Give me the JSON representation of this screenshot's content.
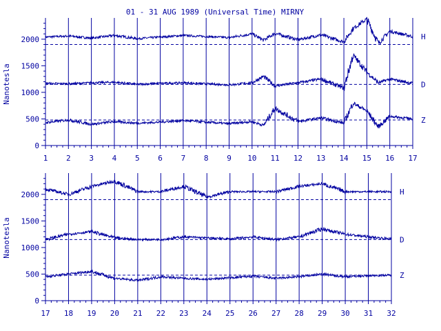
{
  "chart_data": {
    "type": "line",
    "title": "01 - 31 AUG 1989 (Universal Time) MIRNY",
    "ylabel": "Nanotesla",
    "color": "#0000a0",
    "ylim": [
      0,
      2400
    ],
    "yticks": [
      "0",
      "500",
      "1000",
      "1500",
      "2000"
    ],
    "components": [
      "H",
      "D",
      "Z"
    ],
    "baselines": {
      "H": 1900,
      "D": 1150,
      "Z": 480
    },
    "panels": [
      {
        "xlim": [
          1,
          17
        ],
        "xticks": [
          "1",
          "2",
          "3",
          "4",
          "5",
          "6",
          "7",
          "8",
          "9",
          "10",
          "11",
          "12",
          "13",
          "14",
          "15",
          "16",
          "17"
        ],
        "series": [
          {
            "name": "H",
            "x": [
              1,
              2,
              3,
              4,
              5,
              6,
              7,
              8,
              9,
              10,
              10.5,
              11,
              12,
              13,
              14,
              14.4,
              15,
              15.5,
              16,
              17
            ],
            "values": [
              2040,
              2060,
              2020,
              2070,
              2010,
              2040,
              2070,
              2050,
              2030,
              2100,
              1980,
              2110,
              1990,
              2080,
              1950,
              2200,
              2380,
              1920,
              2150,
              2050
            ]
          },
          {
            "name": "D",
            "x": [
              1,
              2,
              3,
              4,
              5,
              6,
              7,
              8,
              9,
              10,
              10.5,
              11,
              12,
              13,
              14,
              14.4,
              15,
              15.5,
              16,
              17
            ],
            "values": [
              1170,
              1160,
              1180,
              1190,
              1150,
              1170,
              1180,
              1160,
              1140,
              1180,
              1300,
              1120,
              1180,
              1250,
              1080,
              1700,
              1380,
              1180,
              1250,
              1170
            ]
          },
          {
            "name": "Z",
            "x": [
              1,
              2,
              3,
              4,
              5,
              6,
              7,
              8,
              9,
              10,
              10.5,
              11,
              12,
              13,
              14,
              14.4,
              15,
              15.5,
              16,
              17
            ],
            "values": [
              430,
              480,
              400,
              450,
              420,
              440,
              470,
              440,
              410,
              450,
              380,
              700,
              450,
              520,
              420,
              800,
              650,
              350,
              550,
              500
            ]
          }
        ]
      },
      {
        "xlim": [
          17,
          32
        ],
        "xticks": [
          "17",
          "18",
          "19",
          "20",
          "21",
          "22",
          "23",
          "24",
          "25",
          "26",
          "27",
          "28",
          "29",
          "30",
          "31",
          "32"
        ],
        "series": [
          {
            "name": "H",
            "x": [
              17,
              18,
              19,
              20,
              21,
              22,
              23,
              24,
              25,
              26,
              27,
              28,
              29,
              30,
              31,
              32
            ],
            "values": [
              2100,
              2000,
              2150,
              2250,
              2050,
              2050,
              2150,
              1950,
              2050,
              2050,
              2050,
              2150,
              2200,
              2050,
              2050,
              2050
            ]
          },
          {
            "name": "D",
            "x": [
              17,
              18,
              19,
              20,
              21,
              22,
              23,
              24,
              25,
              26,
              27,
              28,
              29,
              30,
              31,
              32
            ],
            "values": [
              1150,
              1250,
              1300,
              1180,
              1150,
              1150,
              1200,
              1180,
              1160,
              1200,
              1150,
              1200,
              1350,
              1250,
              1200,
              1160
            ]
          },
          {
            "name": "Z",
            "x": [
              17,
              18,
              19,
              20,
              21,
              22,
              23,
              24,
              25,
              26,
              27,
              28,
              29,
              30,
              31,
              32
            ],
            "values": [
              450,
              500,
              550,
              420,
              380,
              450,
              420,
              400,
              430,
              460,
              420,
              450,
              500,
              450,
              470,
              480
            ]
          }
        ]
      }
    ]
  }
}
